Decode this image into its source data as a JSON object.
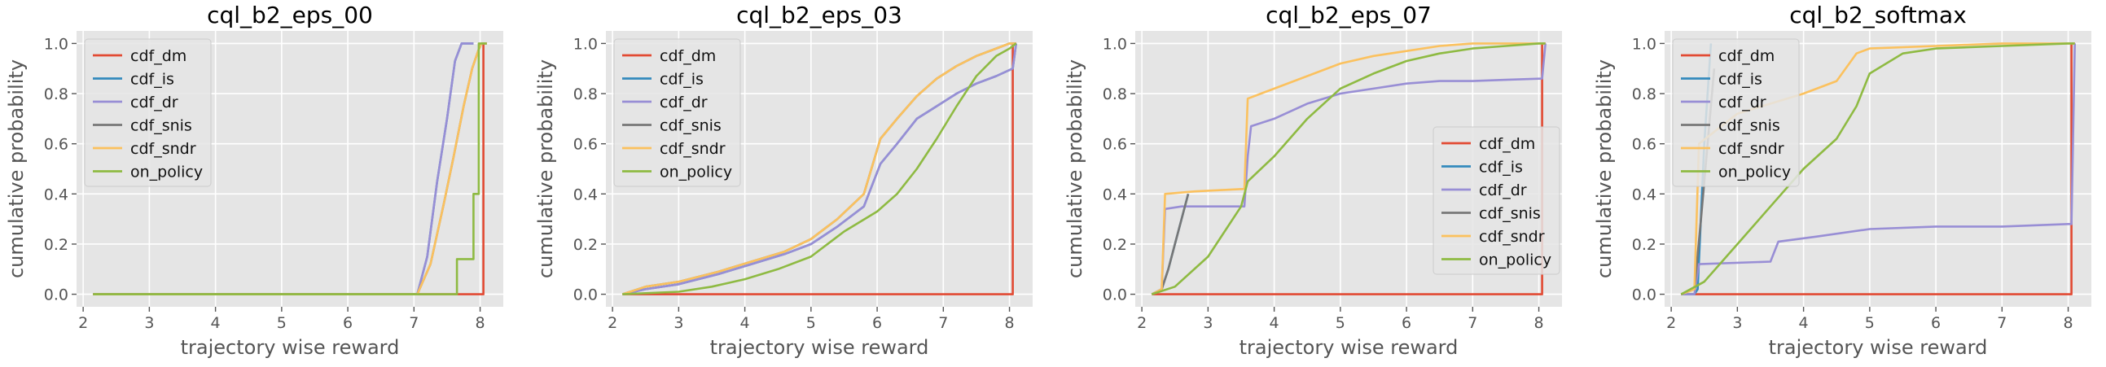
{
  "colors": {
    "cdf_dm": "#E24A33",
    "cdf_is": "#348ABD",
    "cdf_dr": "#988ED5",
    "cdf_snis": "#777777",
    "cdf_sndr": "#FBC15E",
    "on_policy": "#8EBA42",
    "axes_bg": "#E5E5E5",
    "grid": "#FFFFFF"
  },
  "chart_data": [
    {
      "type": "line",
      "title": "cql_b2_eps_00",
      "xlabel": "trajectory wise reward",
      "ylabel": "cumulative probability",
      "xlim": [
        1.9,
        8.35
      ],
      "ylim": [
        -0.05,
        1.05
      ],
      "xticks": [
        "2",
        "3",
        "4",
        "5",
        "6",
        "7",
        "8"
      ],
      "yticks": [
        "0.0",
        "0.2",
        "0.4",
        "0.6",
        "0.8",
        "1.0"
      ],
      "grid": true,
      "legend": "upper-left",
      "series": [
        {
          "name": "cdf_dm",
          "x": [
            2.15,
            8.05,
            8.05,
            8.1
          ],
          "y": [
            0,
            0,
            1,
            1
          ]
        },
        {
          "name": "cdf_is",
          "x": [
            2.15,
            7.05,
            7.2,
            7.35,
            7.5,
            7.62,
            7.72,
            7.85,
            7.9
          ],
          "y": [
            0,
            0,
            0.15,
            0.45,
            0.7,
            0.93,
            1.0,
            1.0,
            1.0
          ]
        },
        {
          "name": "cdf_dr",
          "x": [
            2.15,
            7.05,
            7.2,
            7.35,
            7.5,
            7.62,
            7.72,
            7.85,
            7.9
          ],
          "y": [
            0,
            0,
            0.15,
            0.45,
            0.7,
            0.93,
            1.0,
            1.0,
            1.0
          ]
        },
        {
          "name": "cdf_snis",
          "x": [
            2.15,
            7.05,
            7.25,
            7.45,
            7.6,
            7.75,
            7.88,
            7.97,
            8.02,
            8.1
          ],
          "y": [
            0,
            0,
            0.12,
            0.36,
            0.55,
            0.75,
            0.9,
            0.97,
            1.0,
            1.0
          ]
        },
        {
          "name": "cdf_sndr",
          "x": [
            2.15,
            7.05,
            7.25,
            7.45,
            7.6,
            7.75,
            7.88,
            7.97,
            8.02,
            8.1
          ],
          "y": [
            0,
            0,
            0.12,
            0.36,
            0.55,
            0.75,
            0.9,
            0.97,
            1.0,
            1.0
          ]
        },
        {
          "name": "on_policy",
          "x": [
            2.15,
            7.65,
            7.65,
            7.9,
            7.9,
            7.98,
            7.98,
            8.1
          ],
          "y": [
            0,
            0,
            0.14,
            0.14,
            0.4,
            0.4,
            1.0,
            1.0
          ]
        }
      ]
    },
    {
      "type": "line",
      "title": "cql_b2_eps_03",
      "xlabel": "trajectory wise reward",
      "ylabel": "cumulative probability",
      "xlim": [
        1.9,
        8.35
      ],
      "ylim": [
        -0.05,
        1.05
      ],
      "xticks": [
        "2",
        "3",
        "4",
        "5",
        "6",
        "7",
        "8"
      ],
      "yticks": [
        "0.0",
        "0.2",
        "0.4",
        "0.6",
        "0.8",
        "1.0"
      ],
      "grid": true,
      "legend": "upper-left",
      "series": [
        {
          "name": "cdf_dm",
          "x": [
            2.15,
            8.05,
            8.05,
            8.1
          ],
          "y": [
            0,
            0,
            1,
            1
          ]
        },
        {
          "name": "cdf_is",
          "x": [
            2.15,
            2.5,
            3.0,
            3.6,
            4.1,
            4.6,
            5.0,
            5.4,
            5.8,
            6.05,
            6.3,
            6.6,
            6.9,
            7.2,
            7.5,
            7.8,
            8.05,
            8.1
          ],
          "y": [
            0,
            0.02,
            0.04,
            0.08,
            0.12,
            0.16,
            0.2,
            0.27,
            0.35,
            0.52,
            0.6,
            0.7,
            0.75,
            0.8,
            0.84,
            0.87,
            0.9,
            1.0
          ]
        },
        {
          "name": "cdf_dr",
          "x": [
            2.15,
            2.5,
            3.0,
            3.6,
            4.1,
            4.6,
            5.0,
            5.4,
            5.8,
            6.05,
            6.3,
            6.6,
            6.9,
            7.2,
            7.5,
            7.8,
            8.05,
            8.1
          ],
          "y": [
            0,
            0.02,
            0.04,
            0.08,
            0.12,
            0.16,
            0.2,
            0.27,
            0.35,
            0.52,
            0.6,
            0.7,
            0.75,
            0.8,
            0.84,
            0.87,
            0.9,
            1.0
          ]
        },
        {
          "name": "cdf_snis",
          "x": [
            2.15,
            2.5,
            3.0,
            3.6,
            4.1,
            4.6,
            5.0,
            5.4,
            5.8,
            6.05,
            6.3,
            6.6,
            6.9,
            7.2,
            7.5,
            7.8,
            8.0,
            8.1
          ],
          "y": [
            0,
            0.03,
            0.05,
            0.09,
            0.13,
            0.17,
            0.22,
            0.3,
            0.4,
            0.62,
            0.7,
            0.79,
            0.86,
            0.91,
            0.95,
            0.98,
            1.0,
            1.0
          ]
        },
        {
          "name": "cdf_sndr",
          "x": [
            2.15,
            2.5,
            3.0,
            3.6,
            4.1,
            4.6,
            5.0,
            5.4,
            5.8,
            6.05,
            6.3,
            6.6,
            6.9,
            7.2,
            7.5,
            7.8,
            8.0,
            8.1
          ],
          "y": [
            0,
            0.03,
            0.05,
            0.09,
            0.13,
            0.17,
            0.22,
            0.3,
            0.4,
            0.62,
            0.7,
            0.79,
            0.86,
            0.91,
            0.95,
            0.98,
            1.0,
            1.0
          ]
        },
        {
          "name": "on_policy",
          "x": [
            2.15,
            3.0,
            3.5,
            4.0,
            4.5,
            5.0,
            5.5,
            6.0,
            6.3,
            6.6,
            6.9,
            7.2,
            7.5,
            7.8,
            8.0,
            8.1
          ],
          "y": [
            0,
            0.01,
            0.03,
            0.06,
            0.1,
            0.15,
            0.25,
            0.33,
            0.4,
            0.5,
            0.62,
            0.75,
            0.87,
            0.95,
            0.98,
            1.0
          ]
        }
      ]
    },
    {
      "type": "line",
      "title": "cql_b2_eps_07",
      "xlabel": "trajectory wise reward",
      "ylabel": "cumulative probability",
      "xlim": [
        1.9,
        8.35
      ],
      "ylim": [
        -0.05,
        1.05
      ],
      "xticks": [
        "2",
        "3",
        "4",
        "5",
        "6",
        "7",
        "8"
      ],
      "yticks": [
        "0.0",
        "0.2",
        "0.4",
        "0.6",
        "0.8",
        "1.0"
      ],
      "grid": true,
      "legend": "center-right",
      "series": [
        {
          "name": "cdf_dm",
          "x": [
            2.15,
            8.05,
            8.05,
            8.1
          ],
          "y": [
            0,
            0,
            1,
            1
          ]
        },
        {
          "name": "cdf_is",
          "x": [
            2.15,
            2.3,
            2.4,
            2.5,
            2.6,
            2.7
          ],
          "y": [
            0,
            0.02,
            0.1,
            0.2,
            0.3,
            0.4
          ]
        },
        {
          "name": "cdf_dr",
          "x": [
            2.15,
            2.3,
            2.35,
            2.6,
            3.0,
            3.55,
            3.6,
            3.65,
            4.0,
            4.5,
            5.0,
            5.5,
            6.0,
            6.5,
            7.0,
            7.5,
            8.05,
            8.1
          ],
          "y": [
            0,
            0.02,
            0.34,
            0.35,
            0.35,
            0.35,
            0.55,
            0.67,
            0.7,
            0.76,
            0.8,
            0.82,
            0.84,
            0.85,
            0.85,
            0.855,
            0.86,
            1.0
          ]
        },
        {
          "name": "cdf_snis",
          "x": [
            2.15,
            2.3,
            2.4,
            2.5,
            2.6,
            2.7
          ],
          "y": [
            0,
            0.02,
            0.1,
            0.2,
            0.3,
            0.4
          ]
        },
        {
          "name": "cdf_sndr",
          "x": [
            2.15,
            2.3,
            2.35,
            2.8,
            3.55,
            3.6,
            3.8,
            4.0,
            4.5,
            5.0,
            5.5,
            6.0,
            6.5,
            7.0,
            7.5,
            8.0,
            8.1
          ],
          "y": [
            0,
            0.02,
            0.4,
            0.41,
            0.42,
            0.78,
            0.8,
            0.82,
            0.87,
            0.92,
            0.95,
            0.97,
            0.99,
            1.0,
            1.0,
            1.0,
            1.0
          ]
        },
        {
          "name": "on_policy",
          "x": [
            2.15,
            2.5,
            3.0,
            3.5,
            3.6,
            4.0,
            4.5,
            5.0,
            5.5,
            6.0,
            6.5,
            7.0,
            7.5,
            8.0,
            8.1
          ],
          "y": [
            0,
            0.03,
            0.15,
            0.35,
            0.45,
            0.55,
            0.7,
            0.82,
            0.88,
            0.93,
            0.96,
            0.98,
            0.99,
            1.0,
            1.0
          ]
        }
      ]
    },
    {
      "type": "line",
      "title": "cql_b2_softmax",
      "xlabel": "trajectory wise reward",
      "ylabel": "cumulative probability",
      "xlim": [
        1.9,
        8.35
      ],
      "ylim": [
        -0.05,
        1.05
      ],
      "xticks": [
        "2",
        "3",
        "4",
        "5",
        "6",
        "7",
        "8"
      ],
      "yticks": [
        "0.0",
        "0.2",
        "0.4",
        "0.6",
        "0.8",
        "1.0"
      ],
      "grid": true,
      "legend": "upper-left",
      "series": [
        {
          "name": "cdf_dm",
          "x": [
            2.15,
            8.05,
            8.05,
            8.1
          ],
          "y": [
            0,
            0,
            1,
            1
          ]
        },
        {
          "name": "cdf_is",
          "x": [
            2.15,
            2.35,
            2.4,
            2.5,
            2.6
          ],
          "y": [
            0,
            0,
            0.02,
            0.6,
            1.0
          ]
        },
        {
          "name": "cdf_dr",
          "x": [
            2.15,
            2.35,
            2.42,
            3.5,
            3.62,
            4.2,
            5.0,
            6.0,
            7.0,
            8.0,
            8.05,
            8.1
          ],
          "y": [
            0,
            0,
            0.12,
            0.13,
            0.21,
            0.23,
            0.26,
            0.27,
            0.27,
            0.28,
            0.28,
            1.0
          ]
        },
        {
          "name": "cdf_snis",
          "x": [
            2.15,
            2.35,
            2.45,
            2.55,
            2.65
          ],
          "y": [
            0,
            0.02,
            0.3,
            0.6,
            0.9
          ]
        },
        {
          "name": "cdf_sndr",
          "x": [
            2.15,
            2.35,
            2.42,
            3.0,
            3.5,
            4.0,
            4.5,
            4.8,
            5.0,
            6.0,
            7.0,
            8.0,
            8.1
          ],
          "y": [
            0,
            0.02,
            0.6,
            0.72,
            0.76,
            0.8,
            0.85,
            0.96,
            0.98,
            0.99,
            1.0,
            1.0,
            1.0
          ]
        },
        {
          "name": "on_policy",
          "x": [
            2.15,
            2.5,
            3.0,
            3.5,
            4.0,
            4.5,
            4.8,
            5.0,
            5.5,
            6.0,
            7.0,
            8.0,
            8.1
          ],
          "y": [
            0,
            0.05,
            0.2,
            0.35,
            0.5,
            0.62,
            0.75,
            0.88,
            0.96,
            0.98,
            0.99,
            1.0,
            1.0
          ]
        }
      ]
    }
  ]
}
